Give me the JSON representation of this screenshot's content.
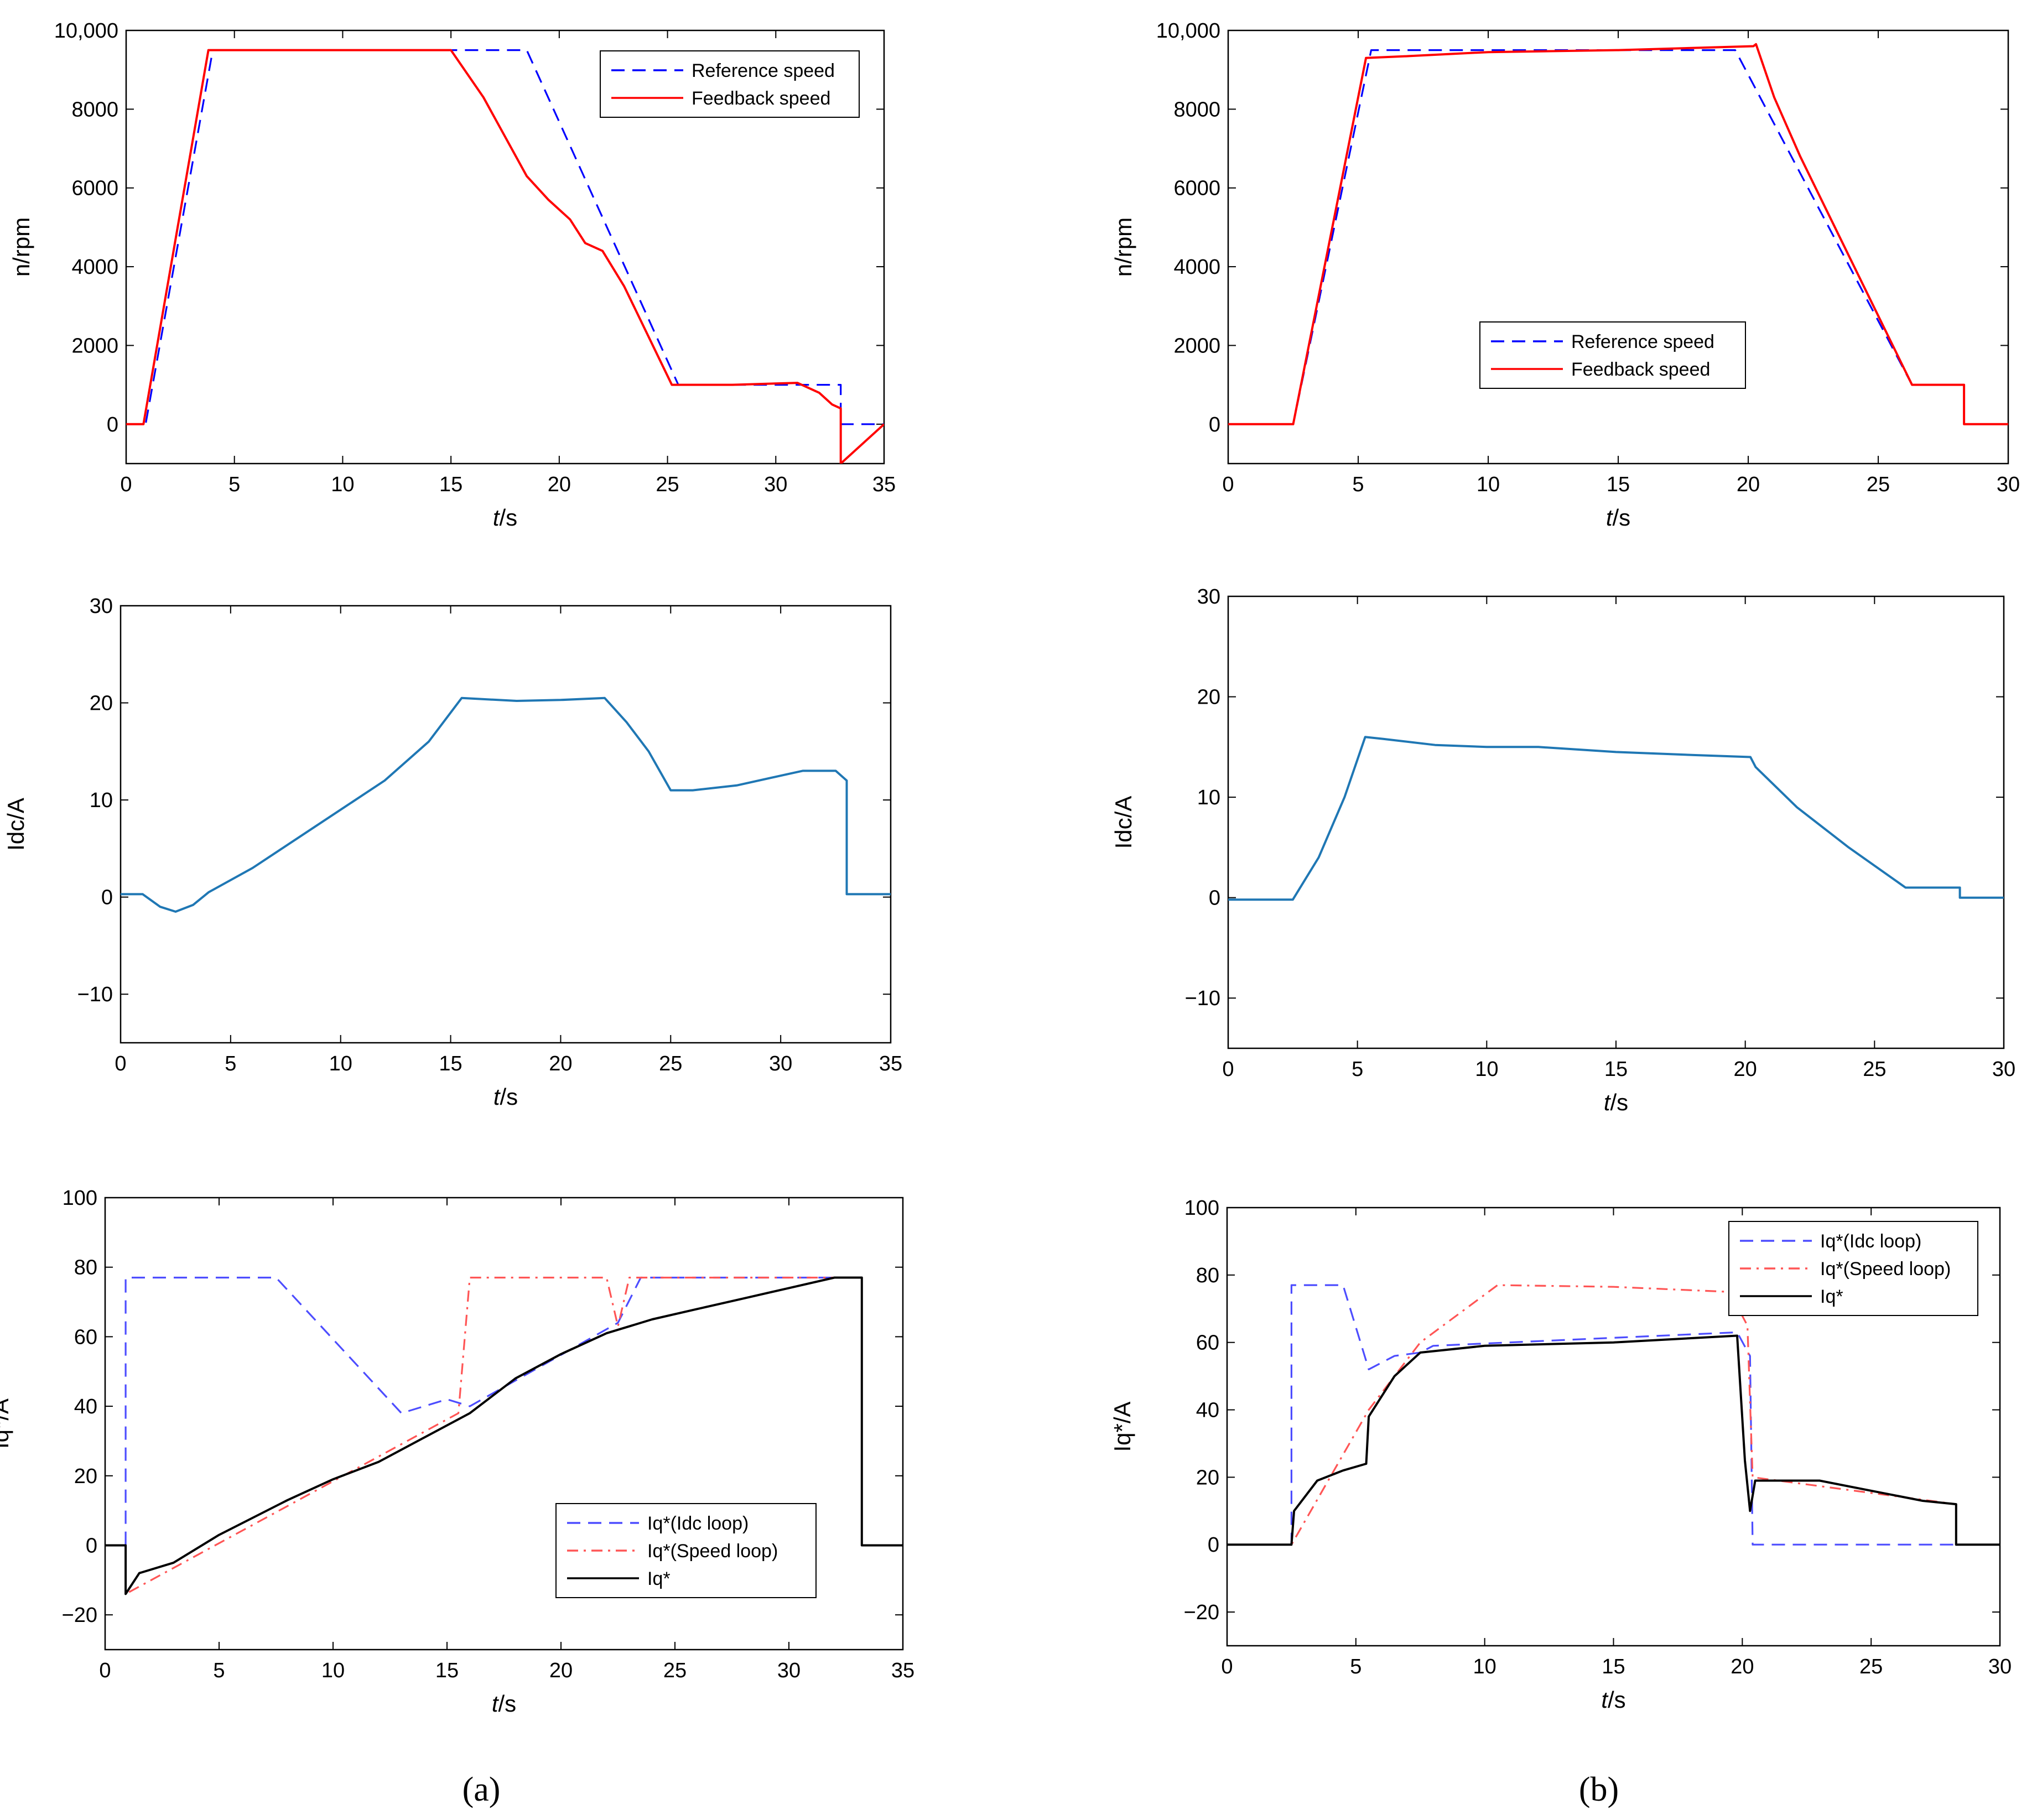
{
  "chart_data": [
    {
      "type": "line",
      "panel": "a",
      "row": 1,
      "xlim": [
        0,
        35
      ],
      "ylim": [
        -1000,
        10000
      ],
      "xticks": [
        "0",
        "5",
        "10",
        "15",
        "20",
        "25",
        "30",
        "35"
      ],
      "yticks": [
        "0",
        "2000",
        "4000",
        "6000",
        "8000",
        "10,000"
      ],
      "ytick_values": [
        0,
        2000,
        4000,
        6000,
        8000,
        10000
      ],
      "xlabel": "t/s",
      "ylabel": "n/rpm",
      "legend_position": "top-right",
      "series": [
        {
          "name": "Reference speed",
          "color": "#0000ff",
          "style": "dashed",
          "x": [
            0,
            0.9,
            4,
            18.5,
            25.5,
            33,
            33,
            35
          ],
          "y": [
            0,
            0,
            9500,
            9500,
            1000,
            1000,
            0,
            0
          ]
        },
        {
          "name": "Feedback speed",
          "color": "#ff0000",
          "style": "solid",
          "x": [
            0,
            0.8,
            3.8,
            15,
            16.5,
            17.5,
            18.5,
            19.5,
            20.5,
            21.2,
            22,
            23,
            25.2,
            28,
            31,
            32,
            32.6,
            33,
            33,
            35
          ],
          "y": [
            0,
            0,
            9500,
            9500,
            8300,
            7300,
            6300,
            5700,
            5200,
            4600,
            4400,
            3500,
            1000,
            1000,
            1050,
            800,
            500,
            400,
            -1000,
            0
          ]
        }
      ]
    },
    {
      "type": "line",
      "panel": "b",
      "row": 1,
      "xlim": [
        0,
        30
      ],
      "ylim": [
        -1000,
        10000
      ],
      "xticks": [
        "0",
        "5",
        "10",
        "15",
        "20",
        "25",
        "30"
      ],
      "yticks": [
        "0",
        "2000",
        "4000",
        "6000",
        "8000",
        "10,000"
      ],
      "ytick_values": [
        0,
        2000,
        4000,
        6000,
        8000,
        10000
      ],
      "xlabel": "t/s",
      "ylabel": "n/rpm",
      "legend_position": "center",
      "series": [
        {
          "name": "Reference speed",
          "color": "#0000ff",
          "style": "dashed",
          "x": [
            0,
            2.5,
            5.5,
            19.5,
            26.3,
            28.3,
            28.3,
            30
          ],
          "y": [
            0,
            0,
            9500,
            9500,
            1000,
            1000,
            0,
            0
          ]
        },
        {
          "name": "Feedback speed",
          "color": "#ff0000",
          "style": "solid",
          "x": [
            0,
            2.5,
            5.3,
            7,
            10,
            15,
            20.2,
            20.3,
            21,
            22,
            26.3,
            28.3,
            28.3,
            30
          ],
          "y": [
            0,
            0,
            9300,
            9350,
            9450,
            9500,
            9600,
            9650,
            8300,
            6800,
            1000,
            1000,
            0,
            0
          ]
        }
      ]
    },
    {
      "type": "line",
      "panel": "a",
      "row": 2,
      "xlim": [
        0,
        35
      ],
      "ylim": [
        -15,
        30
      ],
      "xticks": [
        "0",
        "5",
        "10",
        "15",
        "20",
        "25",
        "30",
        "35"
      ],
      "yticks": [
        "−10",
        "0",
        "10",
        "20",
        "30"
      ],
      "ytick_values": [
        -10,
        0,
        10,
        20,
        30
      ],
      "xlabel": "t/s",
      "ylabel": "Idc/A",
      "series": [
        {
          "name": "Idc",
          "color": "#1f77b4",
          "style": "solid",
          "x": [
            0,
            1,
            1.8,
            2.5,
            3.3,
            4,
            6,
            8,
            10,
            12,
            14,
            15.5,
            18,
            20,
            22,
            23,
            24,
            25,
            26,
            28,
            30,
            31,
            32.5,
            33,
            33,
            35
          ],
          "y": [
            0.3,
            0.3,
            -1,
            -1.5,
            -0.8,
            0.5,
            3,
            6,
            9,
            12,
            16,
            20.5,
            20.2,
            20.3,
            20.5,
            18,
            15,
            11,
            11,
            11.5,
            12.5,
            13,
            13,
            12,
            0.3,
            0.3
          ]
        }
      ]
    },
    {
      "type": "line",
      "panel": "b",
      "row": 2,
      "xlim": [
        0,
        30
      ],
      "ylim": [
        -15,
        30
      ],
      "xticks": [
        "0",
        "5",
        "10",
        "15",
        "20",
        "25",
        "30"
      ],
      "yticks": [
        "−10",
        "0",
        "10",
        "20",
        "30"
      ],
      "ytick_values": [
        -10,
        0,
        10,
        20,
        30
      ],
      "xlabel": "t/s",
      "ylabel": "Idc/A",
      "series": [
        {
          "name": "Idc",
          "color": "#1f77b4",
          "style": "solid",
          "x": [
            0,
            2.5,
            3.5,
            4.5,
            5.3,
            6,
            8,
            10,
            12,
            15,
            18,
            20.2,
            20.4,
            22,
            24,
            26.2,
            28.3,
            28.3,
            30
          ],
          "y": [
            -0.2,
            -0.2,
            4,
            10,
            16,
            15.8,
            15.2,
            15,
            15,
            14.5,
            14.2,
            14,
            13,
            9,
            5,
            1,
            1,
            0,
            0
          ]
        }
      ]
    },
    {
      "type": "line",
      "panel": "a",
      "row": 3,
      "xlim": [
        0,
        35
      ],
      "ylim": [
        -30,
        100
      ],
      "xticks": [
        "0",
        "5",
        "10",
        "15",
        "20",
        "25",
        "30",
        "35"
      ],
      "yticks": [
        "−20",
        "0",
        "20",
        "40",
        "60",
        "80",
        "100"
      ],
      "ytick_values": [
        -20,
        0,
        20,
        40,
        60,
        80,
        100
      ],
      "xlabel": "t/s",
      "ylabel": "Iq*/A",
      "legend_position": "bottom-right",
      "series": [
        {
          "name": "Iq*(Idc loop)",
          "color": "#4d4dff",
          "style": "dashed",
          "x": [
            0,
            0.9,
            0.9,
            7.5,
            13,
            15,
            16,
            22.5,
            23.5,
            33.2,
            33.2,
            35
          ],
          "y": [
            0,
            0,
            77,
            77,
            38,
            42,
            40,
            64,
            77,
            77,
            0,
            0
          ]
        },
        {
          "name": "Iq*(Speed loop)",
          "color": "#ff5555",
          "style": "dashdot",
          "x": [
            0,
            0.9,
            0.9,
            15.5,
            16,
            22,
            22.5,
            23,
            33.2,
            33.2,
            35
          ],
          "y": [
            0,
            0,
            -14,
            38,
            77,
            77,
            63,
            77,
            77,
            0,
            0
          ]
        },
        {
          "name": "Iq*",
          "color": "#000000",
          "style": "solid",
          "x": [
            0,
            0.9,
            0.9,
            1.5,
            3,
            5,
            8,
            10,
            12,
            14,
            16,
            18,
            20,
            22,
            24,
            26,
            28,
            30,
            32,
            33.2,
            33.2,
            35
          ],
          "y": [
            0,
            0,
            -14,
            -8,
            -5,
            3,
            13,
            19,
            24,
            31,
            38,
            48,
            55,
            61,
            65,
            68,
            71,
            74,
            77,
            77,
            0,
            0
          ]
        }
      ]
    },
    {
      "type": "line",
      "panel": "b",
      "row": 3,
      "xlim": [
        0,
        30
      ],
      "ylim": [
        -30,
        100
      ],
      "xticks": [
        "0",
        "5",
        "10",
        "15",
        "20",
        "25",
        "30"
      ],
      "yticks": [
        "−20",
        "0",
        "20",
        "40",
        "60",
        "80",
        "100"
      ],
      "ytick_values": [
        -20,
        0,
        20,
        40,
        60,
        80,
        100
      ],
      "xlabel": "t/s",
      "ylabel": "Iq*/A",
      "legend_position": "top-right",
      "series": [
        {
          "name": "Iq*(Idc loop)",
          "color": "#4d4dff",
          "style": "dashed",
          "x": [
            0,
            2.5,
            2.5,
            4.5,
            5.5,
            6.5,
            7.5,
            8,
            19.8,
            20.3,
            20.4,
            28.3,
            28.3,
            30
          ],
          "y": [
            0,
            0,
            77,
            77,
            52,
            56,
            57,
            59,
            63,
            56,
            0,
            0,
            0,
            0
          ]
        },
        {
          "name": "Iq*(Speed loop)",
          "color": "#ff5555",
          "style": "dashdot",
          "x": [
            0,
            2.5,
            5.5,
            7.5,
            10.5,
            15,
            19.5,
            20.2,
            20.4,
            28.3,
            28.3,
            30
          ],
          "y": [
            0,
            0,
            40,
            60,
            77,
            76.5,
            75,
            65,
            20,
            12,
            0,
            0
          ]
        },
        {
          "name": "Iq*",
          "color": "#000000",
          "style": "solid",
          "x": [
            0,
            2.5,
            2.6,
            3.5,
            4.5,
            5.4,
            5.5,
            6.5,
            7.5,
            10,
            15,
            19.8,
            20.1,
            20.3,
            20.5,
            23,
            25,
            27,
            28.3,
            28.3,
            30
          ],
          "y": [
            0,
            0,
            10,
            19,
            22,
            24,
            38,
            50,
            57,
            59,
            60,
            62,
            25,
            10,
            19,
            19,
            16,
            13,
            12,
            0,
            0
          ]
        }
      ]
    }
  ],
  "panel_labels": {
    "a": "(a)",
    "b": "(b)"
  },
  "axis_names": {
    "t_italic": "t",
    "t_rest": "/s"
  }
}
